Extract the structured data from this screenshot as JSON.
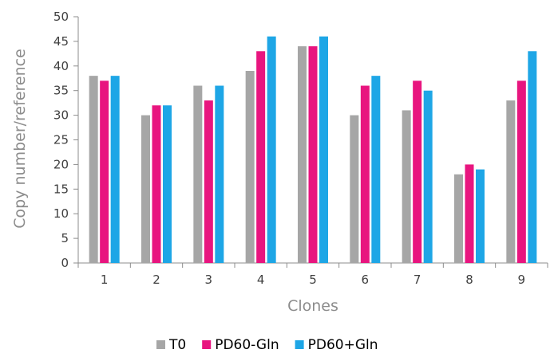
{
  "chart_data": {
    "type": "bar",
    "title": "",
    "xlabel": "Clones",
    "ylabel": "Copy number/reference",
    "ylim": [
      0,
      50
    ],
    "yticks": [
      0,
      5,
      10,
      15,
      20,
      25,
      30,
      35,
      40,
      45,
      50
    ],
    "categories": [
      "1",
      "2",
      "3",
      "4",
      "5",
      "6",
      "7",
      "8",
      "9"
    ],
    "series": [
      {
        "name": "T0",
        "color": "#a6a6a6",
        "values": [
          38,
          30,
          36,
          39,
          44,
          30,
          31,
          18,
          33
        ]
      },
      {
        "name": "PD60-Gln",
        "color": "#e8157f",
        "values": [
          37,
          32,
          33,
          43,
          44,
          36,
          37,
          20,
          37
        ]
      },
      {
        "name": "PD60+Gln",
        "color": "#1ea6e6",
        "values": [
          38,
          32,
          36,
          46,
          46,
          38,
          35,
          19,
          43
        ]
      }
    ],
    "grid": false,
    "legend_position": "bottom"
  }
}
